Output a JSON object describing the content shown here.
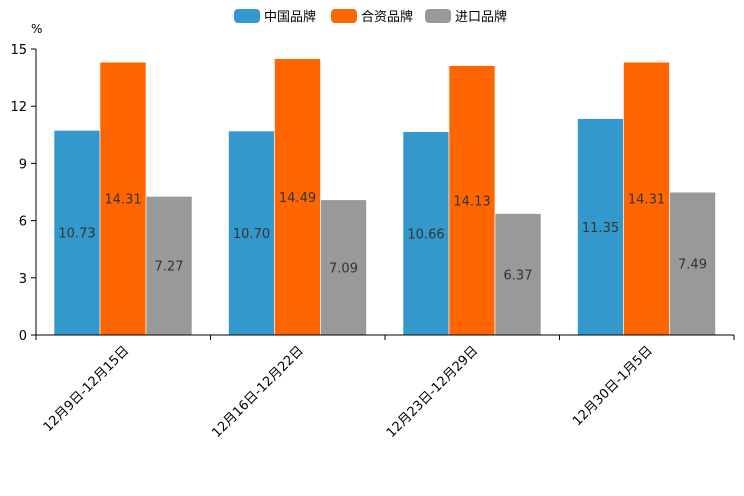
{
  "chart_data": {
    "type": "bar",
    "unit": "%",
    "categories": [
      "12月9日-12月15日",
      "12月16日-12月22日",
      "12月23日-12月29日",
      "12月30日-1月5日"
    ],
    "series": [
      {
        "name": "中国品牌",
        "color": "#3399cc",
        "values": [
          10.73,
          10.7,
          10.66,
          11.35
        ],
        "labels": [
          "10.73",
          "10.70",
          "10.66",
          "11.35"
        ]
      },
      {
        "name": "合资品牌",
        "color": "#ff6600",
        "values": [
          14.31,
          14.49,
          14.13,
          14.31
        ],
        "labels": [
          "14.31",
          "14.49",
          "14.13",
          "14.31"
        ]
      },
      {
        "name": "进口品牌",
        "color": "#999999",
        "values": [
          7.27,
          7.09,
          6.37,
          7.49
        ],
        "labels": [
          "7.27",
          "7.09",
          "6.37",
          "7.49"
        ]
      }
    ],
    "ylim": [
      0,
      15
    ],
    "yticks": [
      0,
      3,
      6,
      9,
      12,
      15
    ],
    "ytick_labels": [
      "0",
      "3",
      "6",
      "9",
      "12",
      "15"
    ],
    "legend_position": "top-center",
    "grid": false
  }
}
